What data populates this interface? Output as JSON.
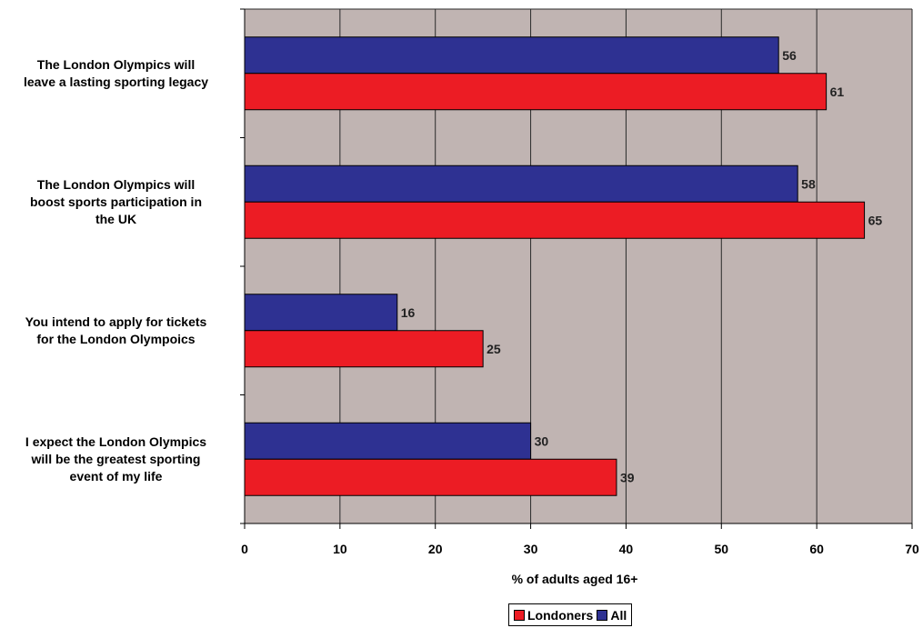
{
  "colors": {
    "plot_bg": "#c0b4b2",
    "grid": "#2a2a2a",
    "londoners": "#ec1c24",
    "all": "#2e3192",
    "text": "#000000"
  },
  "chart_data": {
    "type": "bar",
    "orientation": "horizontal",
    "categories": [
      [
        "The London Olympics will",
        "leave a lasting sporting legacy"
      ],
      [
        "The London Olympics will",
        "boost sports participation in",
        "the UK"
      ],
      [
        "You intend to apply for tickets",
        "for the London Olympoics"
      ],
      [
        "I expect the London Olympics",
        "will be the greatest sporting",
        "event of my life"
      ]
    ],
    "series": [
      {
        "name": "All",
        "color": "#2e3192",
        "values": [
          56,
          58,
          16,
          30
        ]
      },
      {
        "name": "Londoners",
        "color": "#ec1c24",
        "values": [
          61,
          65,
          25,
          39
        ]
      }
    ],
    "xlabel": "% of adults aged 16+",
    "xlim": [
      0,
      70
    ],
    "xticks": [
      "0",
      "10",
      "20",
      "30",
      "40",
      "50",
      "60",
      "70"
    ],
    "grid": true,
    "legend_position": "bottom",
    "legend": [
      "Londoners",
      "All"
    ]
  }
}
